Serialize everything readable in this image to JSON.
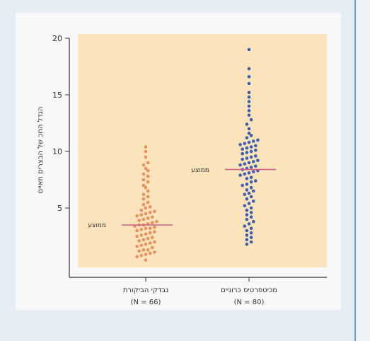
{
  "colors": {
    "plot_bg": "#fbe3bc",
    "control": "#e8905e",
    "patients": "#3d5fae",
    "median_line": "#cf5f86",
    "axis": "#333333"
  },
  "chart_data": {
    "type": "scatter",
    "ylabel": "הגדל החכ של הבצרים תאיים",
    "ylim": [
      0,
      20
    ],
    "yticks": [
      5,
      10,
      15,
      20
    ],
    "grid": false,
    "categories": [
      {
        "label": "נבדקי הביקורת",
        "n_label": "(N = 66)",
        "median_label": "ממוצע",
        "median": 3.5,
        "color_key": "control",
        "values": [
          0.4,
          0.7,
          0.8,
          0.9,
          1.0,
          1.1,
          1.2,
          1.3,
          1.3,
          1.5,
          1.6,
          1.7,
          1.8,
          1.9,
          2.0,
          2.1,
          2.2,
          2.3,
          2.4,
          2.5,
          2.6,
          2.7,
          2.8,
          2.9,
          3.0,
          3.1,
          3.2,
          3.2,
          3.3,
          3.4,
          3.5,
          3.5,
          3.6,
          3.7,
          3.8,
          3.9,
          4.0,
          4.1,
          4.2,
          4.3,
          4.4,
          4.5,
          4.6,
          4.7,
          4.8,
          5.0,
          5.1,
          5.3,
          5.5,
          5.8,
          6.0,
          6.2,
          6.5,
          6.8,
          7.0,
          7.3,
          7.5,
          7.8,
          8.0,
          8.3,
          8.5,
          8.8,
          9.0,
          9.5,
          10.0,
          10.4
        ]
      },
      {
        "label": "מכיטפרטיס כרוניים",
        "n_label": "(N = 80)",
        "median_label": "ממוצע",
        "median": 8.4,
        "color_key": "patients",
        "values": [
          1.8,
          2.0,
          2.2,
          2.4,
          2.6,
          2.8,
          3.0,
          3.2,
          3.4,
          3.6,
          3.8,
          4.0,
          4.2,
          4.4,
          4.6,
          4.8,
          5.0,
          5.2,
          5.4,
          5.6,
          5.8,
          6.0,
          6.2,
          6.3,
          6.5,
          6.6,
          6.8,
          7.0,
          7.1,
          7.3,
          7.4,
          7.6,
          7.7,
          7.9,
          8.0,
          8.1,
          8.2,
          8.3,
          8.4,
          8.5,
          8.6,
          8.7,
          8.8,
          8.9,
          9.0,
          9.1,
          9.2,
          9.3,
          9.4,
          9.5,
          9.6,
          9.8,
          9.9,
          10.0,
          10.1,
          10.2,
          10.3,
          10.4,
          10.5,
          10.6,
          10.7,
          10.8,
          10.9,
          11.0,
          11.2,
          11.4,
          11.6,
          12.0,
          12.4,
          12.8,
          13.2,
          13.6,
          14.0,
          14.4,
          14.8,
          15.2,
          16.0,
          16.6,
          17.3,
          19.0
        ]
      }
    ]
  }
}
